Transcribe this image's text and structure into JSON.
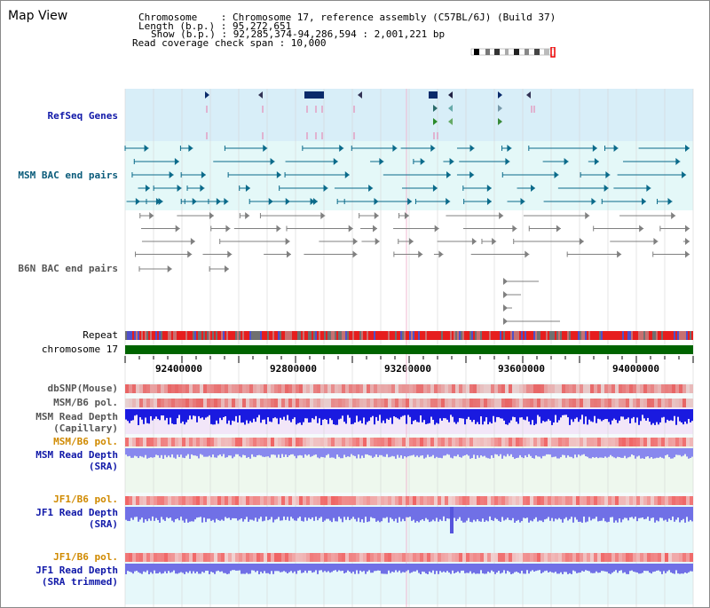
{
  "title": "Map View",
  "info": {
    "line1": "Chromosome    : Chromosome 17, reference assembly (C57BL/6J) (Build 37)",
    "line2": "Length (b.p.) : 95,272,651",
    "line3": "Show (b.p.) : 92,285,374-94,286,594 : 2,001,221 bp",
    "line4": "Read coverage check span : 10,000"
  },
  "tracks": {
    "refseq": "RefSeq Genes",
    "msm_bac": "MSM BAC end pairs",
    "b6n_bac": "B6N BAC end pairs",
    "repeat": "Repeat",
    "chromosome": "chromosome 17",
    "dbsnp": "dbSNP(Mouse)",
    "msm_b6_pol_1": "MSM/B6 pol.",
    "msm_read_depth_cap": "MSM Read Depth\n(Capillary)",
    "msm_b6_pol_2": "MSM/B6 pol.",
    "msm_read_depth_sra": "MSM Read Depth\n(SRA)",
    "jf1_b6_pol_1": "JF1/B6 pol.",
    "jf1_read_depth_sra": "JF1 Read Depth\n(SRA)",
    "jf1_b6_pol_2": "JF1/B6 pol.",
    "jf1_read_depth_trim": "JF1 Read Depth\n(SRA trimmed)"
  },
  "ruler": {
    "ticks": [
      "92400000",
      "92800000",
      "93200000",
      "93600000",
      "94000000"
    ]
  },
  "colors": {
    "refseq_bg": "#d8eef8",
    "bac_bg": "#e6f8f8",
    "chrom_bar": "#006400",
    "repeat_red": "#e61e1e",
    "snp_red": "#e84a4a",
    "depth_blue": "#1a1ae0",
    "depth_light_blue": "#8888ee"
  }
}
